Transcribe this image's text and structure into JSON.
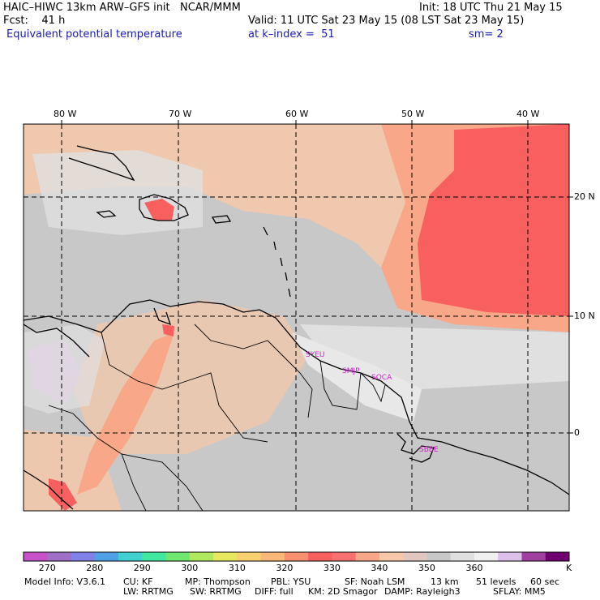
{
  "header": {
    "model_line": "HAIC–HIWC 13km ARW–GFS init   NCAR/MMM",
    "init_line": "Init: 18 UTC Thu 21 May 15",
    "fcst_line": "Fcst:    41 h",
    "valid_line": "Valid: 11 UTC Sat 23 May 15 (08 LST Sat 23 May 15)",
    "field_name": "Equivalent potential temperature",
    "level_line": "at k–index =  51",
    "smooth_line": "sm= 2"
  },
  "map": {
    "lon_labels": [
      "80 W",
      "70 W",
      "60 W",
      "50 W",
      "40 W"
    ],
    "lat_labels": [
      "20 N",
      "10 N",
      "0"
    ],
    "stations": [
      "SYEU",
      "SMJP",
      "SOCA",
      "SBBE"
    ],
    "colors": {
      "background_gray": "#c8c8c8",
      "light_gray": "#e0e0e0",
      "tan": "#f6c8a8",
      "salmon": "#f8a888",
      "red": "#f86060",
      "lavender": "#dcc0e8",
      "station_label": "#d020d0"
    }
  },
  "colorbar": {
    "colors": [
      "#c850c8",
      "#a070c8",
      "#8080e8",
      "#50a0e8",
      "#40d0d0",
      "#40e8a0",
      "#70e870",
      "#b0e860",
      "#e8e860",
      "#f8d070",
      "#f8b878",
      "#f89070",
      "#f86060",
      "#f87070",
      "#f8a888",
      "#f6c8a8",
      "#e0c8c0",
      "#c8c8c8",
      "#e0e0e0",
      "#f0f0f0",
      "#dcc0e8",
      "#a040a0",
      "#700070"
    ],
    "tick_labels": [
      "270",
      "280",
      "290",
      "300",
      "310",
      "320",
      "330",
      "340",
      "350",
      "360"
    ],
    "unit": "K"
  },
  "footer": {
    "line1": [
      "Model Info: V3.6.1",
      "CU: KF",
      "MP: Thompson",
      "PBL: YSU",
      "SF: Noah LSM",
      "13 km",
      "51 levels",
      "60 sec"
    ],
    "line2": [
      "LW: RRTMG",
      "SW: RRTMG",
      "DIFF: full",
      "KM: 2D Smagor",
      "DAMP: Rayleigh3",
      "SFLAY: MM5"
    ]
  }
}
